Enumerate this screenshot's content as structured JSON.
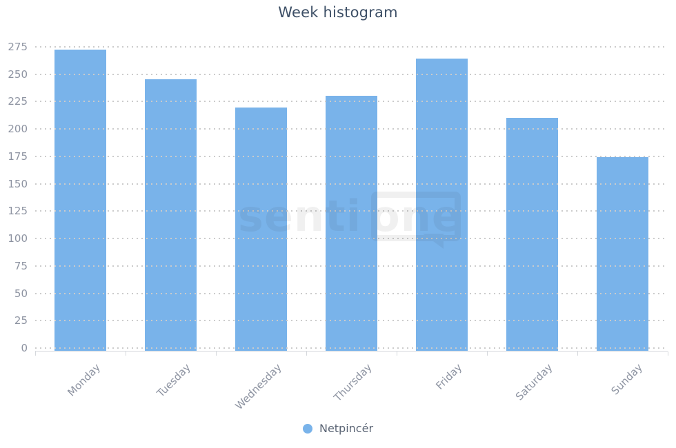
{
  "title": "Week histogram",
  "watermark": {
    "text_left": "senti",
    "text_right": "one"
  },
  "colors": {
    "bar": "#79b3ea",
    "title_text": "#3d4f66",
    "axis_label_text": "#8d93a1",
    "legend_text": "#5a6474",
    "gridline": "#cbcbcb",
    "axis_line": "#d5d8dc"
  },
  "chart_data": {
    "type": "bar",
    "title": "Week histogram",
    "xlabel": "",
    "ylabel": "",
    "categories": [
      "Monday",
      "Tuesday",
      "Wednesday",
      "Thursday",
      "Friday",
      "Saturday",
      "Sunday"
    ],
    "series": [
      {
        "name": "Netpincér",
        "color": "#79b3ea",
        "values": [
          273,
          246,
          220,
          231,
          265,
          211,
          175
        ]
      }
    ],
    "ylim": [
      0,
      275
    ],
    "ytick_step": 25,
    "yticks": [
      0,
      25,
      50,
      75,
      100,
      125,
      150,
      175,
      200,
      225,
      250,
      275
    ],
    "grid": "horizontal-dotted",
    "legend_position": "bottom-center"
  }
}
